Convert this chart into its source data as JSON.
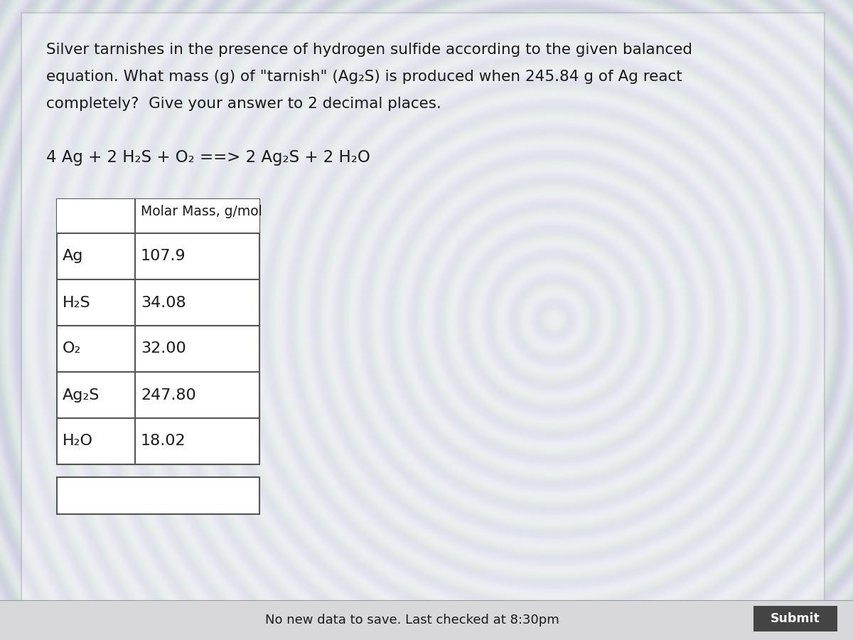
{
  "title_lines": [
    "Silver tarnishes in the presence of hydrogen sulfide according to the given balanced",
    "equation. What mass (g) of \"tarnish\" (Ag₂S) is produced when 245.84 g of Ag react",
    "completely?  Give your answer to 2 decimal places."
  ],
  "equation": "4 Ag + 2 H₂S + O₂ ==> 2 Ag₂S + 2 H₂O",
  "table_header": "Molar Mass, g/mol",
  "table_rows": [
    [
      "Ag",
      "107.9"
    ],
    [
      "H₂S",
      "34.08"
    ],
    [
      "O₂",
      "32.00"
    ],
    [
      "Ag₂S",
      "247.80"
    ],
    [
      "H₂O",
      "18.02"
    ]
  ],
  "footer_text": "No new data to save. Last checked at 8:30pm",
  "submit_text": "Submit",
  "outer_bg": "#b8b8bb",
  "panel_bg": "#e8e8ea",
  "inner_panel_bg": "#f0f0f0",
  "white_color": "#ffffff",
  "text_color": "#1a1a1a",
  "border_color": "#888888",
  "table_border": "#555555",
  "footer_bg": "#d8d8da",
  "submit_bg": "#444444",
  "submit_text_color": "#ffffff"
}
